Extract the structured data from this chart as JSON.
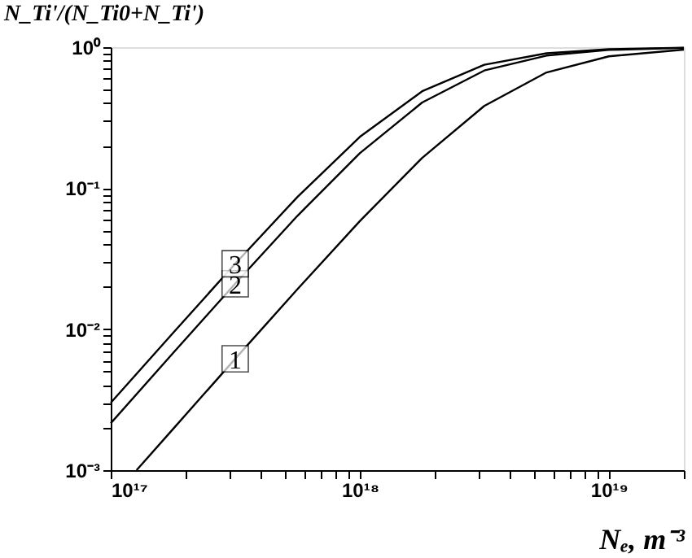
{
  "chart_data": {
    "type": "line",
    "xlabel": "Nₑ, m⁻³",
    "ylabel": "N_Ti'/(N_Ti0+N_Ti')",
    "log": "xy",
    "grid": false,
    "legend": false,
    "line_style": "solid",
    "marker": "none",
    "xlim": [
      1e+17,
      2e+19
    ],
    "ylim": [
      0.001,
      1
    ],
    "xticks": [
      {
        "value": 1e+17,
        "label": "10¹⁷"
      },
      {
        "value": 2e+17,
        "label": null
      },
      {
        "value": 3e+17,
        "label": null
      },
      {
        "value": 4e+17,
        "label": null
      },
      {
        "value": 5e+17,
        "label": null
      },
      {
        "value": 6e+17,
        "label": null
      },
      {
        "value": 7e+17,
        "label": null
      },
      {
        "value": 8e+17,
        "label": null
      },
      {
        "value": 9e+17,
        "label": null
      },
      {
        "value": 1e+18,
        "label": "10¹⁸"
      },
      {
        "value": 2e+18,
        "label": null
      },
      {
        "value": 3e+18,
        "label": null
      },
      {
        "value": 4e+18,
        "label": null
      },
      {
        "value": 5e+18,
        "label": null
      },
      {
        "value": 6e+18,
        "label": null
      },
      {
        "value": 7e+18,
        "label": null
      },
      {
        "value": 8e+18,
        "label": null
      },
      {
        "value": 9e+18,
        "label": null
      },
      {
        "value": 1e+19,
        "label": "10¹⁹"
      },
      {
        "value": 2e+19,
        "label": null
      }
    ],
    "yticks": [
      {
        "value": 0.001,
        "label": "10⁻³"
      },
      {
        "value": 0.002,
        "label": null
      },
      {
        "value": 0.003,
        "label": null
      },
      {
        "value": 0.004,
        "label": null
      },
      {
        "value": 0.005,
        "label": null
      },
      {
        "value": 0.006,
        "label": null
      },
      {
        "value": 0.007,
        "label": null
      },
      {
        "value": 0.008,
        "label": null
      },
      {
        "value": 0.009,
        "label": null
      },
      {
        "value": 0.01,
        "label": "10⁻²"
      },
      {
        "value": 0.02,
        "label": null
      },
      {
        "value": 0.03,
        "label": null
      },
      {
        "value": 0.04,
        "label": null
      },
      {
        "value": 0.05,
        "label": null
      },
      {
        "value": 0.06,
        "label": null
      },
      {
        "value": 0.07,
        "label": null
      },
      {
        "value": 0.08,
        "label": null
      },
      {
        "value": 0.09,
        "label": null
      },
      {
        "value": 0.1,
        "label": "10⁻¹"
      },
      {
        "value": 0.2,
        "label": null
      },
      {
        "value": 0.3,
        "label": null
      },
      {
        "value": 0.4,
        "label": null
      },
      {
        "value": 0.5,
        "label": null
      },
      {
        "value": 0.6,
        "label": null
      },
      {
        "value": 0.7,
        "label": null
      },
      {
        "value": 0.8,
        "label": null
      },
      {
        "value": 0.9,
        "label": null
      },
      {
        "value": 1,
        "label": "10⁰"
      }
    ],
    "series": [
      {
        "name": "1",
        "color": "#000000",
        "x": [
          1.27e+17,
          1.78e+17,
          3.16e+17,
          5.62e+17,
          1e+18,
          1.78e+18,
          3.16e+18,
          5.62e+18,
          1e+19,
          2e+19
        ],
        "values": [
          0.001,
          0.00196,
          0.00616,
          0.0192,
          0.0584,
          0.164,
          0.383,
          0.662,
          0.861,
          0.961
        ]
      },
      {
        "name": "2",
        "color": "#000000",
        "x": [
          1e+17,
          1.78e+17,
          3.16e+17,
          5.62e+17,
          1e+18,
          1.78e+18,
          3.16e+18,
          5.62e+18,
          1e+19,
          2e+19
        ],
        "values": [
          0.00215,
          0.00677,
          0.021,
          0.0637,
          0.177,
          0.405,
          0.683,
          0.872,
          0.956,
          0.989
        ]
      },
      {
        "name": "3",
        "color": "#000000",
        "x": [
          1e+17,
          1.78e+17,
          3.16e+17,
          5.62e+17,
          1e+18,
          1.78e+18,
          3.16e+18,
          5.62e+18,
          1e+19,
          2e+19
        ],
        "values": [
          0.003,
          0.0094,
          0.0291,
          0.0867,
          0.231,
          0.487,
          0.75,
          0.905,
          0.968,
          0.992
        ]
      }
    ]
  }
}
